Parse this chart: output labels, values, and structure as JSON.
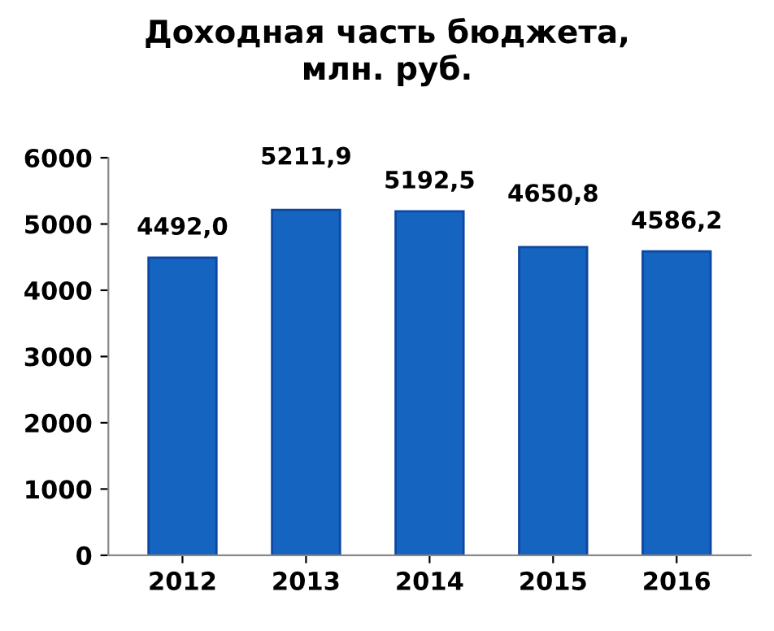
{
  "chart_data": {
    "type": "bar",
    "title": "Доходная часть бюджета,\nмлн. руб.",
    "categories": [
      "2012",
      "2013",
      "2014",
      "2015",
      "2016"
    ],
    "values": [
      4492.0,
      5211.9,
      5192.5,
      4650.8,
      4586.2
    ],
    "value_labels": [
      "4492,0",
      "5211,9",
      "5192,5",
      "4650,8",
      "4586,2"
    ],
    "color": "#1565c0",
    "ylim": [
      0,
      6000
    ],
    "yticks": [
      0,
      1000,
      2000,
      3000,
      4000,
      5000,
      6000
    ],
    "grid": false,
    "legend": false
  }
}
